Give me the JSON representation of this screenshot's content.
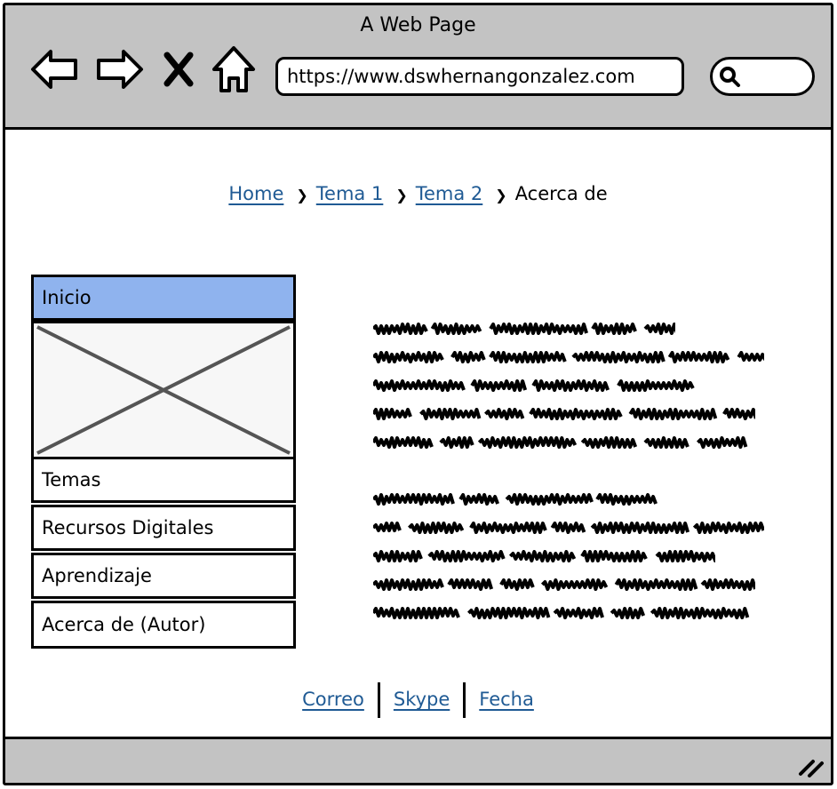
{
  "window": {
    "title": "A Web Page"
  },
  "toolbar": {
    "back_icon": "arrow-left-icon",
    "forward_icon": "arrow-right-icon",
    "stop_icon": "close-icon",
    "home_icon": "home-icon",
    "url": "https://www.dswhernangonzalez.com",
    "search_icon": "search-icon"
  },
  "breadcrumb": {
    "items": [
      {
        "label": "Home",
        "link": true
      },
      {
        "label": "Tema 1",
        "link": true
      },
      {
        "label": "Tema 2",
        "link": true
      },
      {
        "label": "Acerca de",
        "link": false
      }
    ],
    "separator": "❯"
  },
  "sidebar": {
    "items": [
      {
        "label": "Inicio",
        "active": true
      },
      {
        "label": "Temas",
        "active": false
      },
      {
        "label": "Recursos Digitales",
        "active": false
      },
      {
        "label": "Aprendizaje",
        "active": false
      },
      {
        "label": "Acerca de (Autor)",
        "active": false
      }
    ],
    "image_icon": "image-placeholder-icon"
  },
  "footer": {
    "links": [
      "Correo",
      "Skype",
      "Fecha"
    ]
  },
  "colors": {
    "chrome": "#c3c3c3",
    "active_item": "#8fb3ee",
    "link": "#1f5a94"
  }
}
